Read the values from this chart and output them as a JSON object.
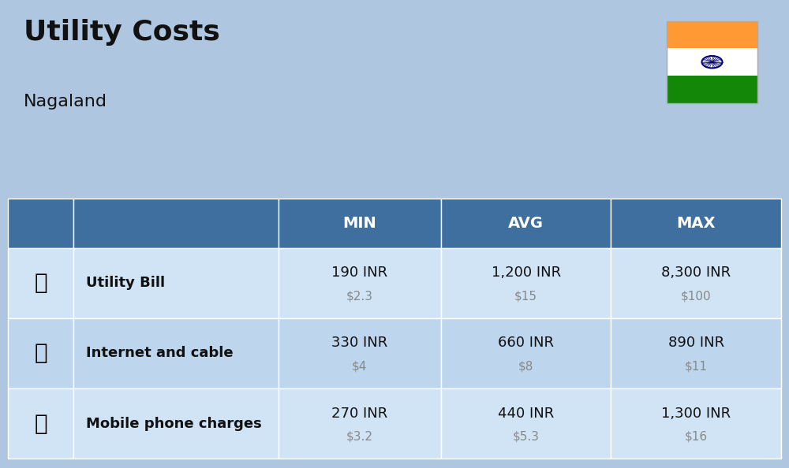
{
  "title": "Utility Costs",
  "subtitle": "Nagaland",
  "background_color": "#aec6e0",
  "header_color": "#3f6f9f",
  "header_text_color": "#ffffff",
  "row_colors": [
    "#d0e4f5",
    "#bdd6ed"
  ],
  "col_headers": [
    "MIN",
    "AVG",
    "MAX"
  ],
  "rows": [
    {
      "label": "Utility Bill",
      "min_inr": "190 INR",
      "min_usd": "$2.3",
      "avg_inr": "1,200 INR",
      "avg_usd": "$15",
      "max_inr": "8,300 INR",
      "max_usd": "$100"
    },
    {
      "label": "Internet and cable",
      "min_inr": "330 INR",
      "min_usd": "$4",
      "avg_inr": "660 INR",
      "avg_usd": "$8",
      "max_inr": "890 INR",
      "max_usd": "$11"
    },
    {
      "label": "Mobile phone charges",
      "min_inr": "270 INR",
      "min_usd": "$3.2",
      "avg_inr": "440 INR",
      "avg_usd": "$5.3",
      "max_inr": "1,300 INR",
      "max_usd": "$16"
    }
  ],
  "flag_colors": [
    "#FF9933",
    "#FFFFFF",
    "#138808"
  ],
  "flag_ashoka_color": "#000080",
  "label_font_size": 13,
  "value_font_size": 13,
  "usd_font_size": 11,
  "header_font_size": 14
}
